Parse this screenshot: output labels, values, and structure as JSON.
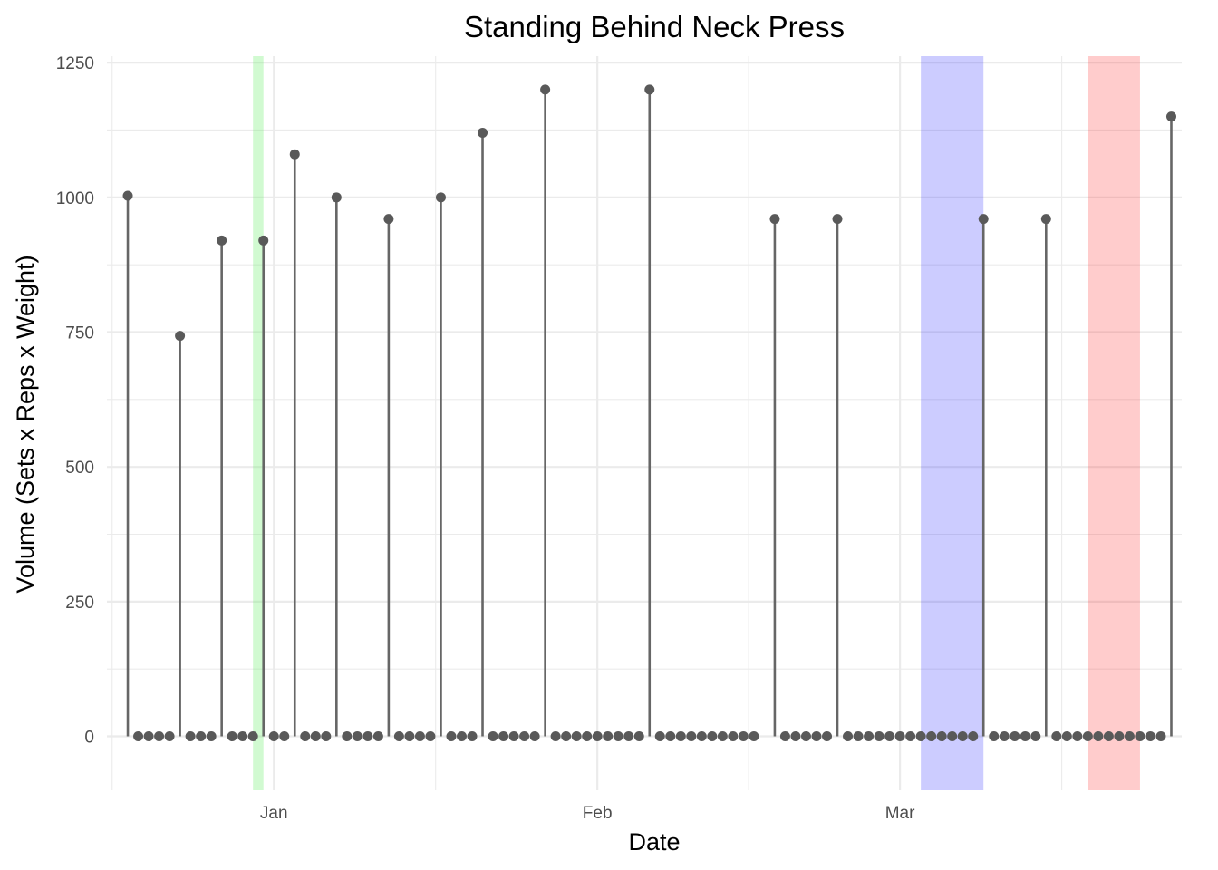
{
  "chart_data": {
    "type": "lollipop",
    "title": "Standing Behind Neck Press",
    "xlabel": "Date",
    "ylabel": "Volume (Sets x Reps x Weight)",
    "x_axis": "date",
    "xlim": [
      "2023-12-16",
      "2024-03-28"
    ],
    "ylim": [
      -100,
      1262
    ],
    "y_ticks": [
      0,
      250,
      500,
      750,
      1000,
      1250
    ],
    "x_ticks": [
      {
        "date": "2024-01-01",
        "label": "Jan"
      },
      {
        "date": "2024-02-01",
        "label": "Feb"
      },
      {
        "date": "2024-03-01",
        "label": "Mar"
      }
    ],
    "grid": true,
    "stem_color": "#666666",
    "point_color": "#595959",
    "bands": [
      {
        "start": "2023-12-30",
        "end": "2023-12-31",
        "color": "#66f066",
        "opacity": 0.3
      },
      {
        "start": "2024-03-03",
        "end": "2024-03-09",
        "color": "#0000ff",
        "opacity": 0.2
      },
      {
        "start": "2024-03-19",
        "end": "2024-03-24",
        "color": "#ff0000",
        "opacity": 0.2
      }
    ],
    "series": [
      {
        "points": [
          [
            "2023-12-18",
            1003
          ],
          [
            "2023-12-19",
            0
          ],
          [
            "2023-12-20",
            0
          ],
          [
            "2023-12-21",
            0
          ],
          [
            "2023-12-22",
            0
          ],
          [
            "2023-12-23",
            743
          ],
          [
            "2023-12-24",
            0
          ],
          [
            "2023-12-25",
            0
          ],
          [
            "2023-12-26",
            0
          ],
          [
            "2023-12-27",
            920
          ],
          [
            "2023-12-28",
            0
          ],
          [
            "2023-12-29",
            0
          ],
          [
            "2023-12-30",
            0
          ],
          [
            "2023-12-31",
            920
          ],
          [
            "2024-01-01",
            0
          ],
          [
            "2024-01-02",
            0
          ],
          [
            "2024-01-03",
            1080
          ],
          [
            "2024-01-04",
            0
          ],
          [
            "2024-01-05",
            0
          ],
          [
            "2024-01-06",
            0
          ],
          [
            "2024-01-07",
            1000
          ],
          [
            "2024-01-08",
            0
          ],
          [
            "2024-01-09",
            0
          ],
          [
            "2024-01-10",
            0
          ],
          [
            "2024-01-11",
            0
          ],
          [
            "2024-01-12",
            960
          ],
          [
            "2024-01-13",
            0
          ],
          [
            "2024-01-14",
            0
          ],
          [
            "2024-01-15",
            0
          ],
          [
            "2024-01-16",
            0
          ],
          [
            "2024-01-17",
            1000
          ],
          [
            "2024-01-18",
            0
          ],
          [
            "2024-01-19",
            0
          ],
          [
            "2024-01-20",
            0
          ],
          [
            "2024-01-21",
            1120
          ],
          [
            "2024-01-22",
            0
          ],
          [
            "2024-01-23",
            0
          ],
          [
            "2024-01-24",
            0
          ],
          [
            "2024-01-25",
            0
          ],
          [
            "2024-01-26",
            0
          ],
          [
            "2024-01-27",
            1200
          ],
          [
            "2024-01-28",
            0
          ],
          [
            "2024-01-29",
            0
          ],
          [
            "2024-01-30",
            0
          ],
          [
            "2024-01-31",
            0
          ],
          [
            "2024-02-01",
            0
          ],
          [
            "2024-02-02",
            0
          ],
          [
            "2024-02-03",
            0
          ],
          [
            "2024-02-04",
            0
          ],
          [
            "2024-02-05",
            0
          ],
          [
            "2024-02-06",
            1200
          ],
          [
            "2024-02-07",
            0
          ],
          [
            "2024-02-08",
            0
          ],
          [
            "2024-02-09",
            0
          ],
          [
            "2024-02-10",
            0
          ],
          [
            "2024-02-11",
            0
          ],
          [
            "2024-02-12",
            0
          ],
          [
            "2024-02-13",
            0
          ],
          [
            "2024-02-14",
            0
          ],
          [
            "2024-02-15",
            0
          ],
          [
            "2024-02-16",
            0
          ],
          [
            "2024-02-18",
            960
          ],
          [
            "2024-02-19",
            0
          ],
          [
            "2024-02-20",
            0
          ],
          [
            "2024-02-21",
            0
          ],
          [
            "2024-02-22",
            0
          ],
          [
            "2024-02-23",
            0
          ],
          [
            "2024-02-24",
            960
          ],
          [
            "2024-02-25",
            0
          ],
          [
            "2024-02-26",
            0
          ],
          [
            "2024-02-27",
            0
          ],
          [
            "2024-02-28",
            0
          ],
          [
            "2024-02-29",
            0
          ],
          [
            "2024-03-01",
            0
          ],
          [
            "2024-03-02",
            0
          ],
          [
            "2024-03-03",
            0
          ],
          [
            "2024-03-04",
            0
          ],
          [
            "2024-03-05",
            0
          ],
          [
            "2024-03-06",
            0
          ],
          [
            "2024-03-07",
            0
          ],
          [
            "2024-03-08",
            0
          ],
          [
            "2024-03-09",
            960
          ],
          [
            "2024-03-10",
            0
          ],
          [
            "2024-03-11",
            0
          ],
          [
            "2024-03-12",
            0
          ],
          [
            "2024-03-13",
            0
          ],
          [
            "2024-03-14",
            0
          ],
          [
            "2024-03-15",
            960
          ],
          [
            "2024-03-16",
            0
          ],
          [
            "2024-03-17",
            0
          ],
          [
            "2024-03-18",
            0
          ],
          [
            "2024-03-19",
            0
          ],
          [
            "2024-03-20",
            0
          ],
          [
            "2024-03-21",
            0
          ],
          [
            "2024-03-22",
            0
          ],
          [
            "2024-03-23",
            0
          ],
          [
            "2024-03-24",
            0
          ],
          [
            "2024-03-25",
            0
          ],
          [
            "2024-03-26",
            0
          ],
          [
            "2024-03-27",
            1150
          ]
        ]
      }
    ]
  }
}
